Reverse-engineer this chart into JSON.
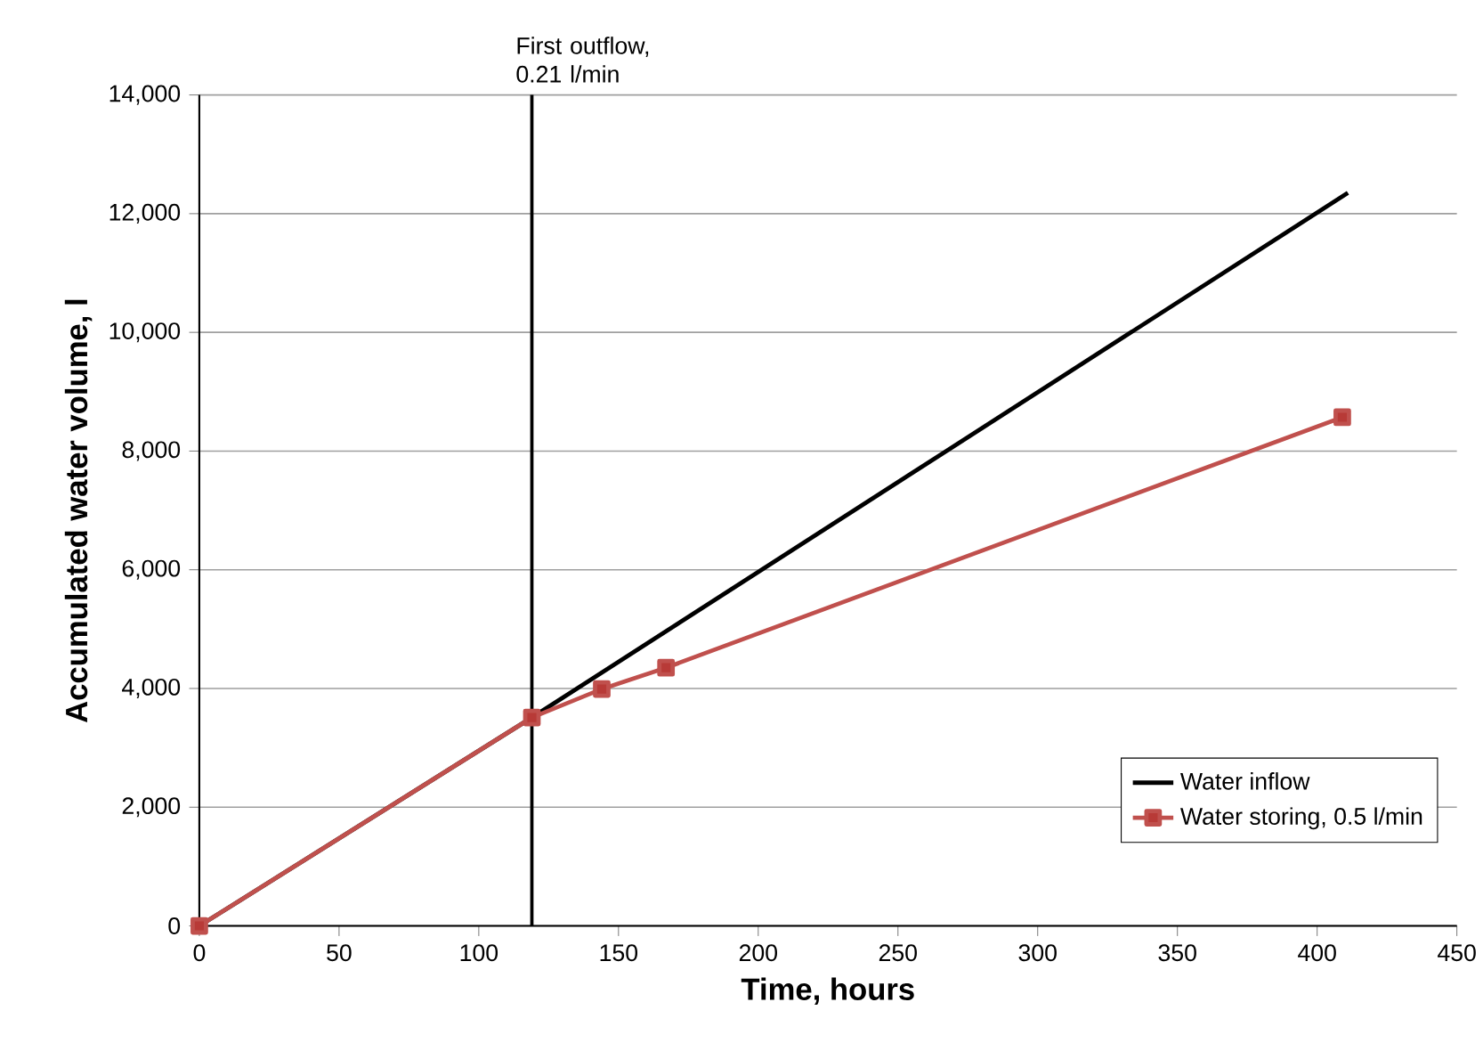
{
  "chart_data": {
    "type": "line",
    "xlabel": "Time, hours",
    "ylabel": "Accumulated water volume, l",
    "series": [
      {
        "name": "Water inflow",
        "color": "#000000",
        "x": [
          0,
          119,
          411
        ],
        "values": [
          0,
          3510,
          12350
        ],
        "marker": "none"
      },
      {
        "name": "Water storing, 0.5 l/min",
        "color": "#c0504d",
        "x": [
          0,
          119,
          144,
          167,
          409
        ],
        "values": [
          0,
          3510,
          3990,
          4350,
          8570
        ],
        "marker": "square"
      }
    ],
    "xlim": [
      0,
      450
    ],
    "xticks": [
      0,
      50,
      100,
      150,
      200,
      250,
      300,
      350,
      400,
      450
    ],
    "ylim": [
      0,
      14000
    ],
    "yticks": [
      {
        "value": 0,
        "label": "0"
      },
      {
        "value": 2000,
        "label": "2,000"
      },
      {
        "value": 4000,
        "label": "4,000"
      },
      {
        "value": 6000,
        "label": "6,000"
      },
      {
        "value": 8000,
        "label": "8,000"
      },
      {
        "value": 10000,
        "label": "10,000"
      },
      {
        "value": 12000,
        "label": "12,000"
      },
      {
        "value": 14000,
        "label": "14,000"
      }
    ],
    "grid": "y",
    "legend": "bottom right",
    "ref_lines": [
      {
        "axis": "x",
        "value": 119,
        "label": "First outflow, 0.21 l/min",
        "color": "#000000"
      }
    ]
  }
}
